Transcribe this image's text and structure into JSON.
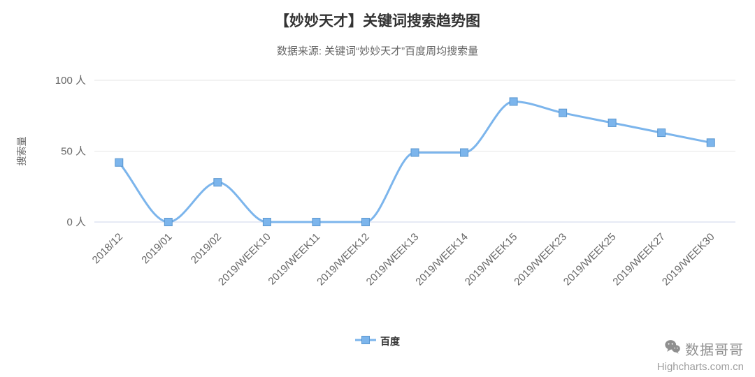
{
  "chart_data": {
    "type": "line",
    "curve": "smooth",
    "title": "【妙妙天才】关键词搜索趋势图",
    "subtitle": "数据来源: 关键词“妙妙天才”百度周均搜索量",
    "ylabel": "搜索量",
    "xlabel": "",
    "categories": [
      "2018/12",
      "2019/01",
      "2019/02",
      "2019/WEEK10",
      "2019/WEEK11",
      "2019/WEEK12",
      "2019/WEEK13",
      "2019/WEEK14",
      "2019/WEEK15",
      "2019/WEEK23",
      "2019/WEEK25",
      "2019/WEEK27",
      "2019/WEEK30"
    ],
    "series": [
      {
        "name": "百度",
        "values": [
          42,
          0,
          28,
          0,
          0,
          0,
          49,
          49,
          85,
          77,
          70,
          63,
          56
        ],
        "color": "#7cb5ec",
        "marker": "square"
      }
    ],
    "ylim": [
      0,
      100
    ],
    "yticks": [
      {
        "value": 0,
        "label": "0 人"
      },
      {
        "value": 50,
        "label": "50 人"
      },
      {
        "value": 100,
        "label": "100 人"
      }
    ],
    "grid": true,
    "legend_position": "bottom",
    "x_label_rotation": -45
  },
  "legend": {
    "items": [
      {
        "label": "百度",
        "color": "#7cb5ec"
      }
    ]
  },
  "watermark": {
    "icon": "wechat-icon",
    "name": "数据哥哥",
    "source": "Highcharts.com.cn"
  },
  "colors": {
    "series": "#7cb5ec",
    "marker_border": "#5a96cf",
    "grid": "#e6e6e6",
    "axis_line": "#ccd6eb",
    "title": "#333333",
    "subtitle": "#666666",
    "axis_text": "#666666",
    "watermark": "#8f8f8f"
  }
}
